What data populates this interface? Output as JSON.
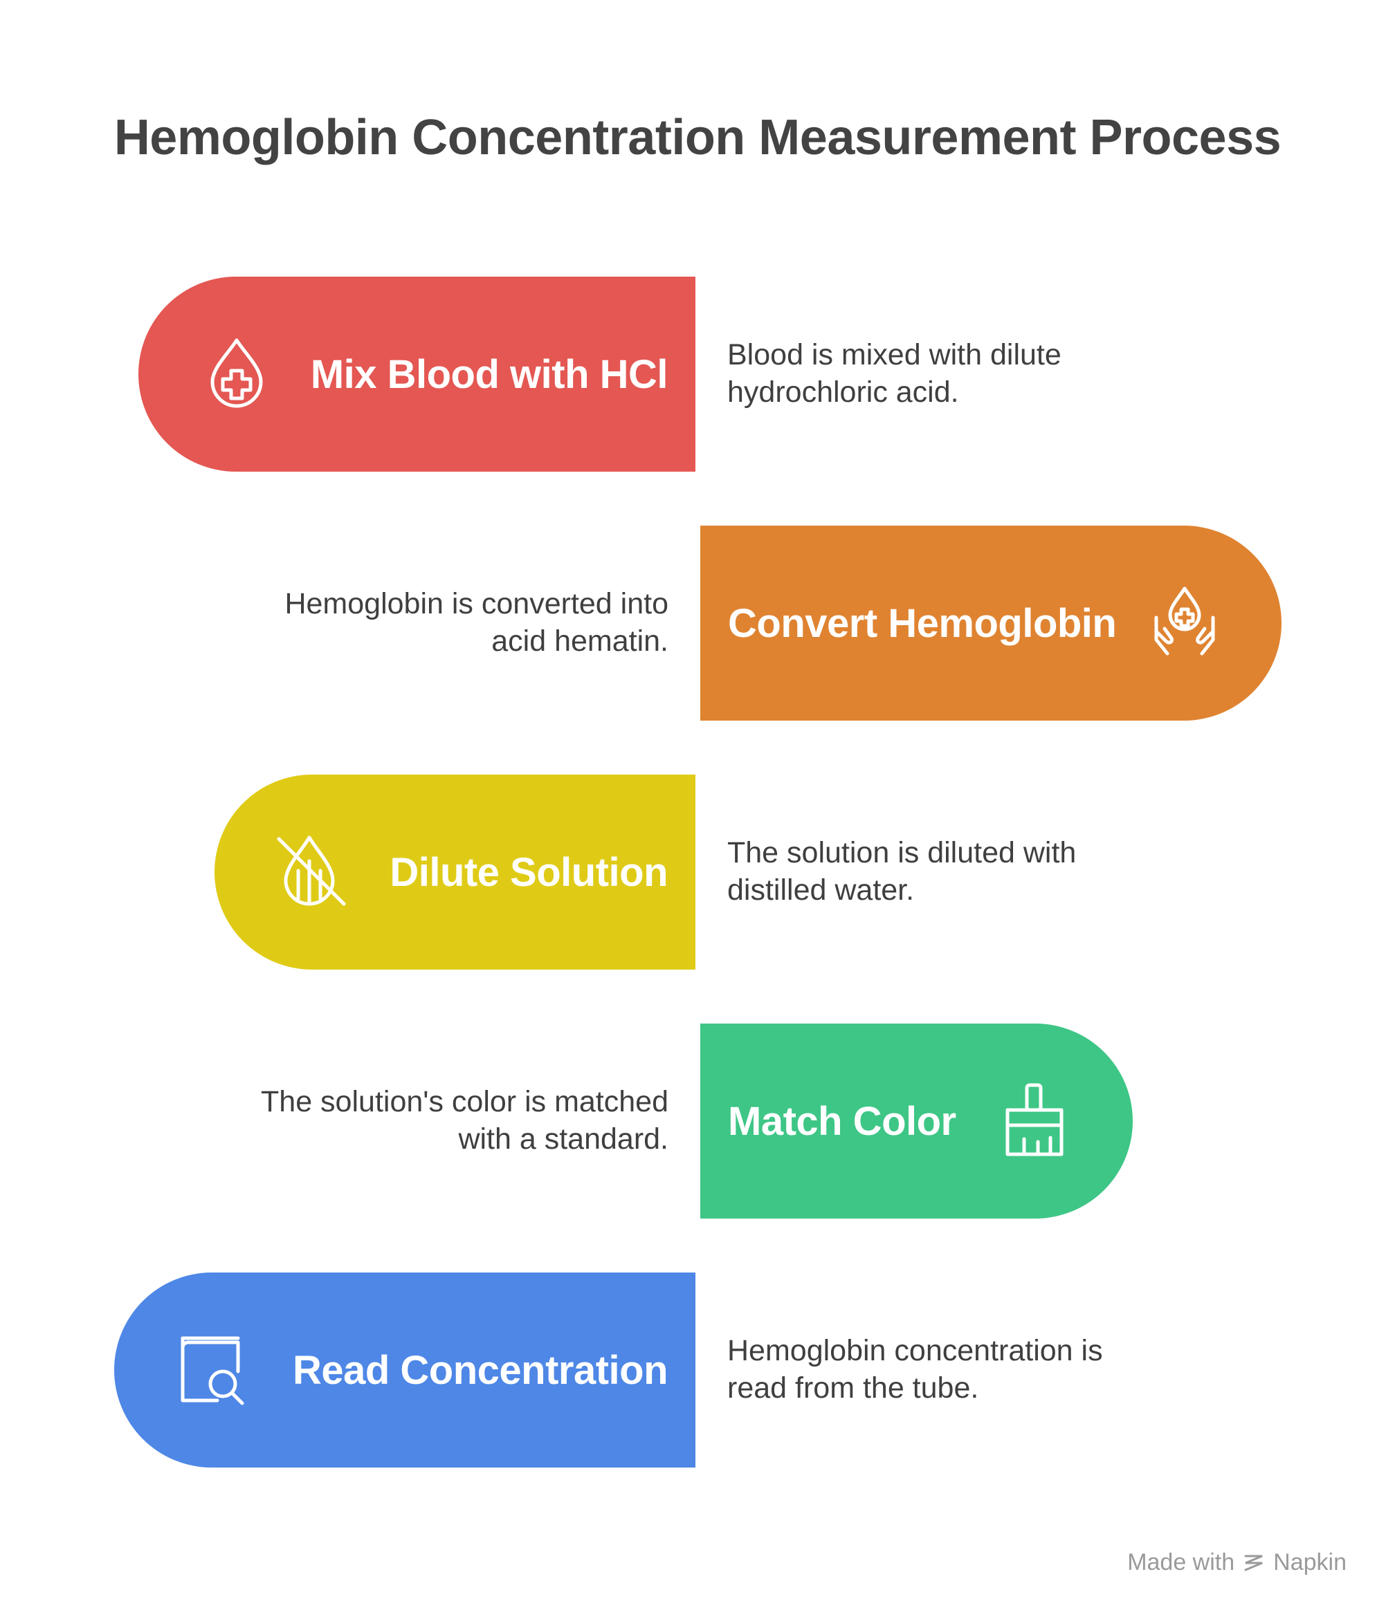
{
  "title": "Hemoglobin Concentration Measurement Process",
  "steps": [
    {
      "label": "Mix Blood with HCl",
      "description": "Blood is mixed with dilute hydrochloric acid.",
      "color": "#e45752",
      "icon": "blood-drop-plus-icon"
    },
    {
      "label": "Convert Hemoglobin",
      "description": "Hemoglobin is converted into acid hematin.",
      "color": "#df8331",
      "icon": "hands-holding-blood-drop-icon"
    },
    {
      "label": "Dilute Solution",
      "description": "The solution is diluted with distilled water.",
      "color": "#dfcb16",
      "icon": "drop-slash-icon"
    },
    {
      "label": "Match Color",
      "description": "The solution's color is matched with a standard.",
      "color": "#3ec686",
      "icon": "paint-brush-icon"
    },
    {
      "label": "Read Concentration",
      "description": "Hemoglobin concentration is read from the tube.",
      "color": "#4e87e6",
      "icon": "book-search-icon"
    }
  ],
  "footer": {
    "made_with": "Made with",
    "brand": "Napkin"
  }
}
